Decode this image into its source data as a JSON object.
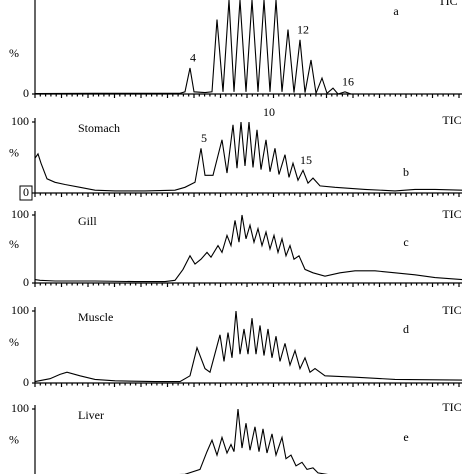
{
  "chart_data": [
    {
      "type": "line",
      "panel_label": "a",
      "trace_label": "TIC",
      "ylabel": "%",
      "ylim": [
        0,
        130
      ],
      "yticks": [
        0
      ],
      "xlim": [
        0,
        427
      ],
      "color": "#000000",
      "x": [
        0,
        60,
        120,
        145,
        150,
        155,
        159,
        170,
        177,
        182,
        188,
        194,
        199,
        205,
        211,
        217,
        223,
        229,
        235,
        241,
        247,
        253,
        259,
        265,
        270,
        276,
        281,
        287,
        292,
        298,
        303,
        310,
        316,
        340,
        427
      ],
      "values": [
        0.5,
        1,
        1,
        1,
        3,
        36,
        3,
        2,
        3,
        103,
        3,
        130,
        3,
        130,
        3,
        130,
        3,
        130,
        3,
        130,
        3,
        89,
        2,
        75,
        2,
        47,
        1,
        22,
        1,
        8,
        0,
        3,
        0,
        0,
        0
      ],
      "annotations": [
        {
          "text": "4",
          "x": 155,
          "y": 36
        },
        {
          "text": "12",
          "x": 265,
          "y": 75
        },
        {
          "text": "16",
          "x": 310,
          "y": 3
        }
      ]
    },
    {
      "type": "line",
      "panel_label": "b",
      "trace_label": "TIC",
      "sample": "Stomach",
      "ylabel": "%",
      "ylim": [
        0,
        100
      ],
      "yticks": [
        0,
        100
      ],
      "zero_tick_boxed": true,
      "xlim": [
        0,
        427
      ],
      "color": "#000000",
      "x": [
        0,
        3,
        6,
        12,
        20,
        30,
        45,
        60,
        80,
        110,
        140,
        150,
        160,
        166,
        170,
        178,
        187,
        192,
        198,
        202,
        206,
        210,
        214,
        218,
        222,
        226,
        231,
        235,
        240,
        244,
        250,
        254,
        258,
        263,
        268,
        273,
        278,
        285,
        300,
        330,
        360,
        380,
        400,
        427
      ],
      "values": [
        49,
        55,
        42,
        20,
        15,
        12,
        8,
        4,
        3,
        3,
        4,
        8,
        15,
        63,
        25,
        25,
        75,
        28,
        96,
        35,
        100,
        38,
        100,
        36,
        89,
        33,
        75,
        30,
        63,
        26,
        54,
        22,
        42,
        18,
        32,
        14,
        21,
        10,
        8,
        5,
        3,
        5,
        5,
        4
      ],
      "annotations": [
        {
          "text": "5",
          "x": 166,
          "y": 63
        },
        {
          "text": "10",
          "x": 231,
          "y": 100
        },
        {
          "text": "15",
          "x": 268,
          "y": 32
        }
      ]
    },
    {
      "type": "line",
      "panel_label": "c",
      "trace_label": "TIC",
      "sample": "Gill",
      "ylabel": "%",
      "ylim": [
        0,
        100
      ],
      "yticks": [
        0,
        100
      ],
      "xlim": [
        0,
        427
      ],
      "color": "#000000",
      "x": [
        0,
        5,
        20,
        60,
        100,
        130,
        140,
        148,
        155,
        160,
        166,
        172,
        176,
        183,
        187,
        192,
        196,
        200,
        204,
        207,
        211,
        215,
        219,
        223,
        227,
        231,
        235,
        239,
        243,
        247,
        251,
        255,
        259,
        264,
        270,
        278,
        290,
        305,
        320,
        340,
        360,
        380,
        400,
        427
      ],
      "values": [
        5,
        4,
        3,
        3,
        2,
        2,
        4,
        20,
        40,
        28,
        35,
        45,
        38,
        55,
        45,
        70,
        55,
        92,
        60,
        100,
        65,
        85,
        60,
        80,
        55,
        75,
        50,
        70,
        45,
        65,
        40,
        55,
        35,
        40,
        20,
        15,
        10,
        15,
        18,
        18,
        15,
        12,
        8,
        5
      ]
    },
    {
      "type": "line",
      "panel_label": "d",
      "trace_label": "TIC",
      "sample": "Muscle",
      "ylabel": "%",
      "ylim": [
        0,
        100
      ],
      "yticks": [
        0,
        100
      ],
      "xlim": [
        0,
        427
      ],
      "color": "#000000",
      "x": [
        0,
        15,
        25,
        32,
        45,
        60,
        80,
        120,
        145,
        155,
        162,
        170,
        175,
        185,
        189,
        193,
        197,
        201,
        205,
        209,
        213,
        217,
        221,
        225,
        229,
        233,
        237,
        241,
        245,
        250,
        255,
        260,
        265,
        270,
        275,
        280,
        290,
        320,
        360,
        427
      ],
      "values": [
        2,
        6,
        12,
        15,
        10,
        5,
        3,
        2,
        2,
        10,
        49,
        20,
        15,
        67,
        30,
        70,
        35,
        100,
        40,
        75,
        40,
        90,
        40,
        80,
        38,
        75,
        35,
        65,
        30,
        55,
        25,
        45,
        20,
        35,
        15,
        20,
        10,
        8,
        5,
        4
      ]
    },
    {
      "type": "line",
      "panel_label": "e",
      "trace_label": "TIC",
      "sample": "Liver",
      "ylabel": "%",
      "ylim": [
        0,
        100
      ],
      "yticks": [
        100
      ],
      "xlim": [
        0,
        427
      ],
      "color": "#000000",
      "x": [
        0,
        100,
        150,
        165,
        172,
        177,
        182,
        187,
        192,
        196,
        199,
        203,
        207,
        211,
        215,
        220,
        224,
        228,
        232,
        237,
        241,
        247,
        251,
        256,
        261,
        267,
        272,
        278,
        283,
        300,
        427
      ],
      "values": [
        5,
        5,
        8,
        15,
        40,
        56,
        35,
        60,
        38,
        50,
        40,
        100,
        45,
        80,
        42,
        75,
        40,
        72,
        38,
        65,
        35,
        60,
        30,
        35,
        20,
        25,
        15,
        17,
        10,
        6,
        5
      ]
    }
  ]
}
